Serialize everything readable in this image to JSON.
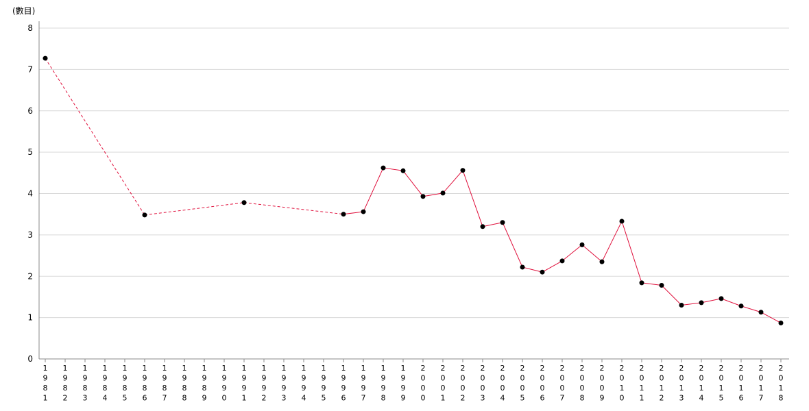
{
  "chart_data": {
    "type": "line",
    "y_unit_label": "(數目)",
    "x": [
      "1981",
      "1982",
      "1983",
      "1984",
      "1985",
      "1986",
      "1987",
      "1988",
      "1989",
      "1990",
      "1991",
      "1992",
      "1993",
      "1994",
      "1995",
      "1996",
      "1997",
      "1998",
      "1999",
      "2000",
      "2001",
      "2002",
      "2003",
      "2004",
      "2005",
      "2006",
      "2007",
      "2008",
      "2009",
      "2010",
      "2011",
      "2012",
      "2013",
      "2014",
      "2015",
      "2016",
      "2017",
      "2018"
    ],
    "series": [
      {
        "color": "#e0103c",
        "marker_color": "#000000",
        "values": [
          7.27,
          null,
          null,
          null,
          null,
          3.48,
          null,
          null,
          null,
          null,
          3.78,
          null,
          null,
          null,
          null,
          3.5,
          3.56,
          4.62,
          4.55,
          3.93,
          4.01,
          4.56,
          3.2,
          3.3,
          2.22,
          2.1,
          2.37,
          2.76,
          2.35,
          3.33,
          1.84,
          1.78,
          1.3,
          1.36,
          1.46,
          1.28,
          1.13,
          0.87
        ],
        "gaps_drawn_dashed": true
      }
    ],
    "ylim": [
      0,
      8
    ],
    "yticks": [
      0,
      1,
      2,
      3,
      4,
      5,
      6,
      7,
      8
    ],
    "grid": true,
    "legend": "none"
  }
}
